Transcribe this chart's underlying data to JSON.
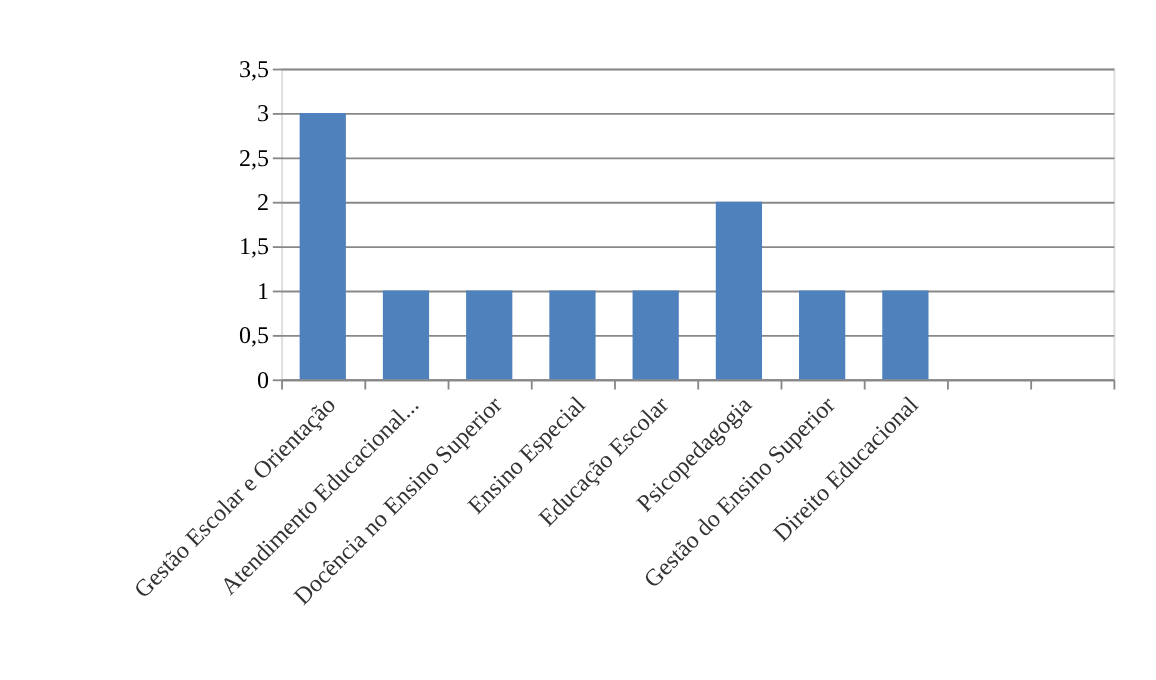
{
  "chart_data": {
    "type": "bar",
    "categories": [
      "Gestão Escolar e Orientação",
      "Atendimento Educacional...",
      "Docência no Ensino Superior",
      "Ensino Especial",
      "Educação Escolar",
      "Psicopedagogia",
      "Gestão do Ensino Superior",
      "Direito Educacional",
      null,
      null
    ],
    "values": [
      3,
      1,
      1,
      1,
      1,
      2,
      1,
      1,
      null,
      null
    ],
    "color": "#4f81bd",
    "ylim": [
      0,
      3.5
    ],
    "yticks": [
      0,
      {
        "value": 0.5,
        "label": "0,5"
      },
      1,
      {
        "value": 1.5,
        "label": "1,5"
      },
      2,
      {
        "value": 2.5,
        "label": "2,5"
      },
      3,
      {
        "value": 3.5,
        "label": "3,5"
      }
    ],
    "grid": "y"
  }
}
